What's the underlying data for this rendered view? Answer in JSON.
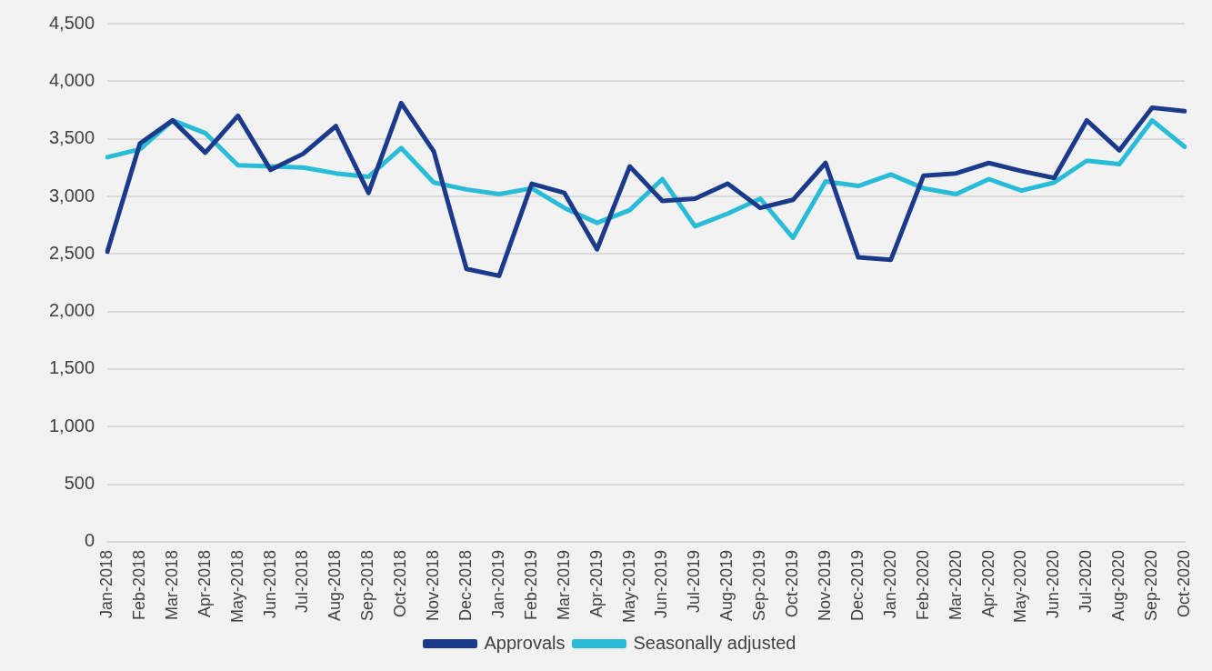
{
  "chart_data": {
    "type": "line",
    "categories": [
      "Jan-2018",
      "Feb-2018",
      "Mar-2018",
      "Apr-2018",
      "May-2018",
      "Jun-2018",
      "Jul-2018",
      "Aug-2018",
      "Sep-2018",
      "Oct-2018",
      "Nov-2018",
      "Dec-2018",
      "Jan-2019",
      "Feb-2019",
      "Mar-2019",
      "Apr-2019",
      "May-2019",
      "Jun-2019",
      "Jul-2019",
      "Aug-2019",
      "Sep-2019",
      "Oct-2019",
      "Nov-2019",
      "Dec-2019",
      "Jan-2020",
      "Feb-2020",
      "Mar-2020",
      "Apr-2020",
      "May-2020",
      "Jun-2020",
      "Jul-2020",
      "Aug-2020",
      "Sep-2020",
      "Oct-2020"
    ],
    "series": [
      {
        "name": "Approvals",
        "color": "#1b3a8c",
        "values": [
          2520,
          3460,
          3660,
          3380,
          3700,
          3230,
          3370,
          3610,
          3030,
          3810,
          3390,
          2370,
          2310,
          3110,
          3030,
          2540,
          3260,
          2960,
          2980,
          3110,
          2900,
          2970,
          3290,
          2470,
          2450,
          3180,
          3200,
          3290,
          3220,
          3160,
          3660,
          3400,
          3770,
          3740
        ]
      },
      {
        "name": "Seasonally adjusted",
        "color": "#29bcd8",
        "values": [
          3340,
          3410,
          3660,
          3550,
          3270,
          3260,
          3250,
          3200,
          3170,
          3420,
          3120,
          3060,
          3020,
          3070,
          2900,
          2770,
          2880,
          3150,
          2740,
          2850,
          2980,
          2640,
          3130,
          3090,
          3190,
          3070,
          3020,
          3150,
          3050,
          3120,
          3310,
          3280,
          3660,
          3430
        ]
      }
    ],
    "ylim": [
      0,
      4500
    ],
    "yticks": [
      0,
      500,
      {
        "value": 1000,
        "label": "1,000"
      },
      {
        "value": 1500,
        "label": "1,500"
      },
      {
        "value": 2000,
        "label": "2,000"
      },
      {
        "value": 2500,
        "label": "2,500"
      },
      {
        "value": 3000,
        "label": "3,000"
      },
      {
        "value": 3500,
        "label": "3,500"
      },
      {
        "value": 4000,
        "label": "4,000"
      },
      {
        "value": 4500,
        "label": "4,500"
      }
    ],
    "grid": "y",
    "legend": "bottom",
    "marker": "none",
    "line_style": "solid"
  }
}
